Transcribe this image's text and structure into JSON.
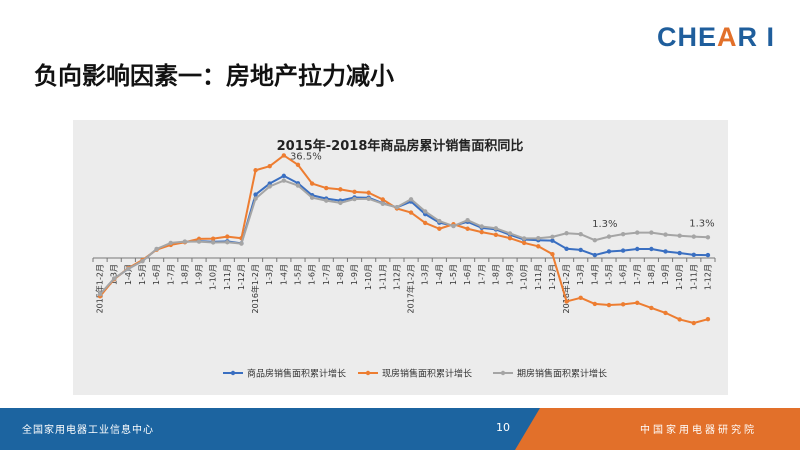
{
  "logo": {
    "prefix": "CHE",
    "accent": "A",
    "suffix": "R I"
  },
  "slide_title": "负向影响因素一：房地产拉力减小",
  "footer": {
    "left": "全国家用电器工业信息中心",
    "page": "10",
    "right": "中国家用电器研究院"
  },
  "colors": {
    "series1": "#3a6fc1",
    "series2": "#ed7d31",
    "series3": "#a5a5a5",
    "footer_blue": "#1c64a0",
    "footer_orange": "#e2702a"
  },
  "chart_data": {
    "type": "line",
    "title": "2015年-2018年商品房累计销售面积同比",
    "categories": [
      "2015年1-2月",
      "1-3月",
      "1-4月",
      "1-5月",
      "1-6月",
      "1-7月",
      "1-8月",
      "1-9月",
      "1-10月",
      "1-11月",
      "1-12月",
      "2016年1-2月",
      "1-3月",
      "1-4月",
      "1-5月",
      "1-6月",
      "1-7月",
      "1-8月",
      "1-9月",
      "1-10月",
      "1-11月",
      "1-12月",
      "2017年1-2月",
      "1-3月",
      "1-4月",
      "1-5月",
      "1-6月",
      "1-7月",
      "1-8月",
      "1-9月",
      "1-10月",
      "1-11月",
      "1-12月",
      "2018年1-2月",
      "1-3月",
      "1-4月",
      "1-5月",
      "1-6月",
      "1-7月",
      "1-8月",
      "1-9月",
      "1-10月",
      "1-11月",
      "1-12月"
    ],
    "ylim": [
      -40,
      40
    ],
    "series": [
      {
        "name": "商品房销售面积累计增长",
        "values": [
          -16.3,
          -9.2,
          -4.8,
          -1.3,
          3.9,
          6.5,
          7.2,
          7.5,
          7.2,
          7.4,
          6.5,
          28.2,
          33.1,
          36.5,
          33.2,
          27.9,
          26.4,
          25.5,
          26.9,
          26.8,
          24.3,
          22.5,
          25.1,
          19.5,
          15.7,
          14.3,
          16.1,
          13.4,
          12.7,
          10.3,
          8.2,
          7.9,
          7.7,
          4.1,
          3.6,
          1.3,
          2.9,
          3.3,
          4.0,
          4.0,
          2.9,
          2.2,
          1.4,
          1.3
        ]
      },
      {
        "name": "现房销售面积累计增长",
        "values": [
          -17.0,
          -9.4,
          -4.5,
          -0.9,
          3.7,
          5.8,
          7.0,
          8.5,
          8.6,
          9.5,
          8.8,
          39.0,
          40.8,
          45.6,
          41.4,
          33.1,
          31.1,
          30.5,
          29.4,
          29.0,
          26.0,
          22.0,
          20.2,
          15.6,
          13.0,
          15.0,
          13.0,
          11.5,
          10.3,
          8.8,
          6.7,
          5.2,
          1.7,
          -19.3,
          -17.7,
          -20.4,
          -20.9,
          -20.6,
          -19.9,
          -22.2,
          -24.4,
          -27.3,
          -28.9,
          -27.2
        ]
      },
      {
        "name": "期房销售面积累计增长",
        "values": [
          -16.1,
          -9.1,
          -4.8,
          -1.4,
          4.0,
          6.7,
          7.3,
          7.3,
          6.9,
          7.0,
          6.4,
          26.4,
          31.8,
          34.4,
          32.2,
          26.8,
          25.5,
          24.5,
          26.2,
          26.3,
          24.1,
          22.6,
          26.1,
          20.7,
          16.4,
          14.2,
          16.8,
          14.0,
          13.2,
          10.9,
          8.7,
          8.8,
          9.4,
          11.0,
          10.6,
          7.9,
          9.5,
          10.6,
          11.3,
          11.3,
          10.4,
          9.9,
          9.5,
          9.2
        ]
      }
    ],
    "annotations": [
      {
        "text": "36.5%",
        "category_index": 13,
        "series": 0
      },
      {
        "text": "1.3%",
        "category_index": 35,
        "series": 0
      },
      {
        "text": "1.3%",
        "category_index": 43,
        "series": 0
      }
    ],
    "legend_position": "bottom",
    "grid": false
  }
}
